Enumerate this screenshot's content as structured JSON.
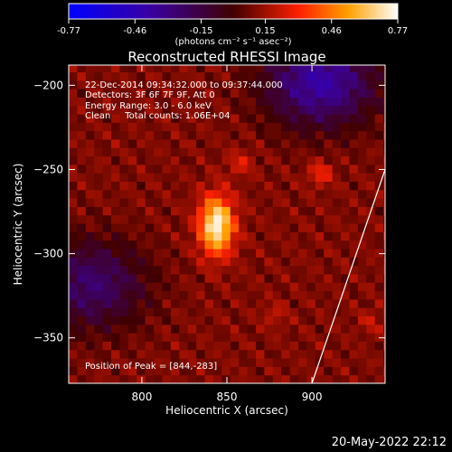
{
  "colorbar": {
    "ticks": [
      "-0.77",
      "-0.46",
      "-0.15",
      "0.15",
      "0.46",
      "0.77"
    ],
    "tick_values": [
      -0.77,
      -0.46,
      -0.15,
      0.15,
      0.46,
      0.77
    ],
    "unit_label": "(photons cm⁻² s⁻¹ asec⁻²)",
    "range": [
      -0.77,
      0.77
    ]
  },
  "chart_data": {
    "type": "heatmap",
    "title": "Reconstructed RHESSI Image",
    "xlabel": "Heliocentric X (arcsec)",
    "ylabel": "Heliocentric Y (arcsec)",
    "xlim": [
      757,
      943
    ],
    "ylim": [
      -377,
      -188
    ],
    "x_ticks": [
      800,
      850,
      900
    ],
    "y_ticks": [
      -200,
      -250,
      -300,
      -350
    ],
    "peak": {
      "x": 844,
      "y": -283,
      "value": 0.77
    },
    "blobs": [
      {
        "x": 844,
        "y": -283,
        "value": 0.77
      },
      {
        "x": 878,
        "y": -336,
        "value": 0.15
      },
      {
        "x": 858,
        "y": -246,
        "value": 0.2
      },
      {
        "x": 905,
        "y": -252,
        "value": 0.25
      },
      {
        "x": 935,
        "y": -340,
        "value": 0.15
      }
    ],
    "negative_regions": [
      {
        "x": 905,
        "y": -198,
        "value": -0.4
      },
      {
        "x": 770,
        "y": -318,
        "value": -0.25
      }
    ],
    "limb_line": [
      [
        900,
        -377
      ],
      [
        943,
        -250
      ]
    ],
    "annotations": [
      "22-Dec-2014 09:34:32.000 to 09:37:44.000",
      "Detectors: 3F 6F 7F 9F, Att 0",
      "Energy Range: 3.0 - 6.0 keV",
      "Clean     Total counts: 1.06E+04"
    ],
    "peak_label": "Position of Peak = [844,-283]"
  },
  "footer": {
    "timestamp": "20-May-2022 22:12"
  }
}
